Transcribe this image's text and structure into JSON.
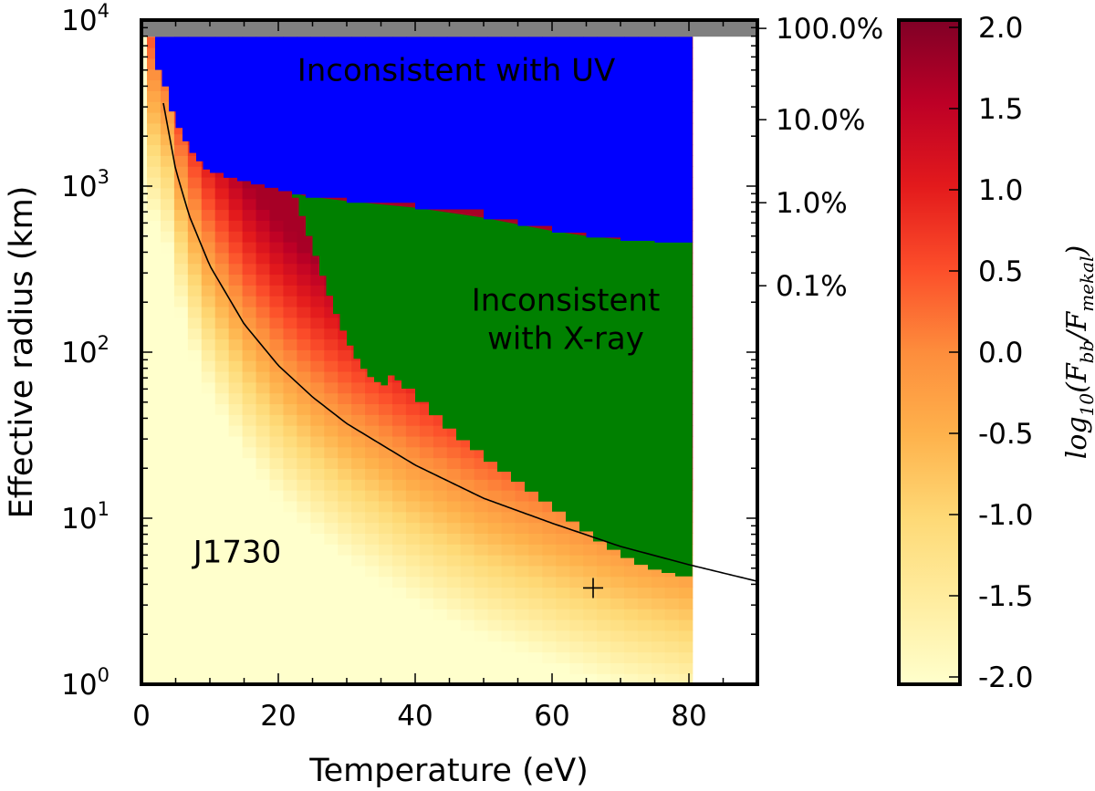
{
  "chart_data": {
    "type": "heatmap",
    "title": "",
    "xlabel": "Temperature (eV)",
    "ylabel": "Effective radius (km)",
    "xlim": [
      0,
      90
    ],
    "ylim_log10": [
      0,
      4
    ],
    "x_ticks": [
      {
        "value": 0,
        "label": "0"
      },
      {
        "value": 20,
        "label": "20"
      },
      {
        "value": 40,
        "label": "40"
      },
      {
        "value": 60,
        "label": "60"
      },
      {
        "value": 80,
        "label": "80"
      }
    ],
    "y_ticks": [
      {
        "exp": 0,
        "base": "10",
        "sup": "0"
      },
      {
        "exp": 1,
        "base": "10",
        "sup": "1"
      },
      {
        "exp": 2,
        "base": "10",
        "sup": "2"
      },
      {
        "exp": 3,
        "base": "10",
        "sup": "3"
      },
      {
        "exp": 4,
        "base": "10",
        "sup": "4"
      }
    ],
    "right_axis_labels": [
      {
        "label": "100.0%",
        "log10_radius": 3.95
      },
      {
        "label": "10.0%",
        "log10_radius": 3.4
      },
      {
        "label": "1.0%",
        "log10_radius": 2.9
      },
      {
        "label": "0.1%",
        "log10_radius": 2.4
      }
    ],
    "regions": [
      {
        "name": "Inconsistent with UV",
        "lines": [
          "Inconsistent with UV"
        ],
        "color": "#0000ff",
        "label_at": {
          "x": 46,
          "log10_radius": 3.7
        },
        "lower_boundary": [
          [
            2,
            3.7
          ],
          [
            3,
            3.6
          ],
          [
            4,
            3.45
          ],
          [
            5,
            3.35
          ],
          [
            6,
            3.27
          ],
          [
            7,
            3.2
          ],
          [
            8,
            3.15
          ],
          [
            9,
            3.1
          ],
          [
            10,
            3.08
          ],
          [
            12,
            3.05
          ],
          [
            14,
            3.03
          ],
          [
            16,
            3.01
          ],
          [
            18,
            2.99
          ],
          [
            20,
            2.97
          ],
          [
            22,
            2.95
          ],
          [
            24,
            2.93
          ],
          [
            30,
            2.9
          ],
          [
            40,
            2.86
          ],
          [
            50,
            2.8
          ],
          [
            55,
            2.76
          ],
          [
            60,
            2.72
          ],
          [
            65,
            2.69
          ],
          [
            70,
            2.67
          ],
          [
            75,
            2.66
          ],
          [
            80.5,
            2.66
          ]
        ]
      },
      {
        "name": "Inconsistent with X-ray",
        "lines": [
          "Inconsistent",
          "with X-ray"
        ],
        "color": "#008000",
        "label_at": {
          "x": 62,
          "log10_radius": 2.2
        },
        "lower_boundary": [
          [
            22,
            2.93
          ],
          [
            23,
            2.82
          ],
          [
            24,
            2.7
          ],
          [
            25,
            2.58
          ],
          [
            26,
            2.46
          ],
          [
            27,
            2.34
          ],
          [
            28,
            2.23
          ],
          [
            29,
            2.13
          ],
          [
            30,
            2.04
          ],
          [
            31,
            1.96
          ],
          [
            32,
            1.9
          ],
          [
            33,
            1.85
          ],
          [
            34,
            1.82
          ],
          [
            35,
            1.8
          ],
          [
            36,
            1.86
          ],
          [
            37,
            1.83
          ],
          [
            38,
            1.78
          ],
          [
            40,
            1.7
          ],
          [
            42,
            1.62
          ],
          [
            44,
            1.54
          ],
          [
            46,
            1.47
          ],
          [
            48,
            1.41
          ],
          [
            50,
            1.34
          ],
          [
            52,
            1.28
          ],
          [
            54,
            1.22
          ],
          [
            56,
            1.16
          ],
          [
            58,
            1.1
          ],
          [
            60,
            1.04
          ],
          [
            62,
            0.98
          ],
          [
            64,
            0.92
          ],
          [
            66,
            0.86
          ],
          [
            68,
            0.81
          ],
          [
            70,
            0.76
          ],
          [
            72,
            0.72
          ],
          [
            74,
            0.69
          ],
          [
            76,
            0.67
          ],
          [
            78,
            0.65
          ],
          [
            80.5,
            0.64
          ]
        ]
      }
    ],
    "grey_band": {
      "color": "#808080",
      "log10_from": 3.9,
      "log10_to": 4.0
    },
    "data_x_max": 80.5,
    "curve": {
      "description": "constant-luminance blackbody track",
      "points": [
        [
          3.2,
          3.5
        ],
        [
          5,
          3.1
        ],
        [
          7,
          2.82
        ],
        [
          10,
          2.52
        ],
        [
          15,
          2.17
        ],
        [
          20,
          1.92
        ],
        [
          25,
          1.73
        ],
        [
          30,
          1.57
        ],
        [
          40,
          1.32
        ],
        [
          50,
          1.12
        ],
        [
          60,
          0.97
        ],
        [
          70,
          0.83
        ],
        [
          80,
          0.72
        ],
        [
          90,
          0.62
        ]
      ]
    },
    "marker": {
      "x": 66,
      "log10_radius": 0.58,
      "symbol": "+"
    },
    "annotations": [
      {
        "text": "J1730",
        "x": 14,
        "log10_radius": 0.8
      }
    ],
    "colorbar": {
      "label_prefix": "log",
      "label_sub": "10",
      "label_body": "(F",
      "label_sub1": "bb",
      "label_mid": "/F",
      "label_sub2": "mekal",
      "label_end": ")",
      "min": -2.0,
      "max": 2.0,
      "ticks": [
        "2.0",
        "1.5",
        "1.0",
        "0.5",
        "0.0",
        "-0.5",
        "-1.0",
        "-1.5",
        "-2.0"
      ],
      "tick_values": [
        2.0,
        1.5,
        1.0,
        0.5,
        0.0,
        -0.5,
        -1.0,
        -1.5,
        -2.0
      ],
      "colormap": [
        "#ffffcc",
        "#ffeda0",
        "#fed976",
        "#feb24c",
        "#fd8d3c",
        "#fc4e2a",
        "#e31a1c",
        "#bd0026",
        "#800026"
      ]
    }
  }
}
